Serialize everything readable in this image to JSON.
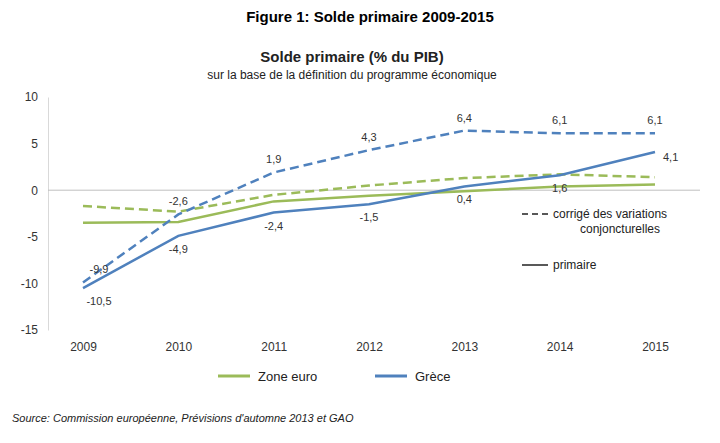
{
  "chart_data": {
    "type": "line",
    "header": "Figure 1: Solde primaire 2009-2015",
    "title": "Solde primaire (% du PIB)",
    "subtitle": "sur la base de la définition du programme économique",
    "source": "Source: Commission européenne, Prévisions d'automne 2013 et GAO",
    "categories": [
      "2009",
      "2010",
      "2011",
      "2012",
      "2013",
      "2014",
      "2015"
    ],
    "ylim": [
      -15,
      10
    ],
    "yticks": [
      -15,
      -10,
      -5,
      0,
      5,
      10
    ],
    "grid": false,
    "legend": "bottom",
    "line_style_legend": [
      {
        "label": "corrigé des variations conjoncturelles",
        "line_style": "dashed"
      },
      {
        "label": "primaire",
        "line_style": "solid"
      }
    ],
    "series": [
      {
        "name": "Zone euro",
        "color": "#9bbb59",
        "line_style": "solid",
        "values": [
          -3.5,
          -3.4,
          -1.2,
          -0.6,
          -0.1,
          0.4,
          0.6
        ]
      },
      {
        "name": "Zone euro",
        "color": "#9bbb59",
        "line_style": "dashed",
        "values": [
          -1.7,
          -2.3,
          -0.5,
          0.5,
          1.3,
          1.7,
          1.4
        ]
      },
      {
        "name": "Grèce",
        "color": "#4f81bd",
        "line_style": "solid",
        "data_labels": true,
        "values": [
          -10.5,
          -4.9,
          -2.4,
          -1.5,
          0.4,
          1.6,
          4.1
        ],
        "value_labels": [
          "-10,5",
          "-4,9",
          "-2,4",
          "-1,5",
          "0,4",
          "1,6",
          "4,1"
        ]
      },
      {
        "name": "Grèce",
        "color": "#4f81bd",
        "line_style": "dashed",
        "data_labels": true,
        "values": [
          -9.9,
          -2.6,
          1.9,
          4.3,
          6.4,
          6.1,
          6.1
        ],
        "value_labels": [
          "-9,9",
          "-2,6",
          "1,9",
          "4,3",
          "6,4",
          "6,1",
          "6,1"
        ]
      }
    ]
  }
}
